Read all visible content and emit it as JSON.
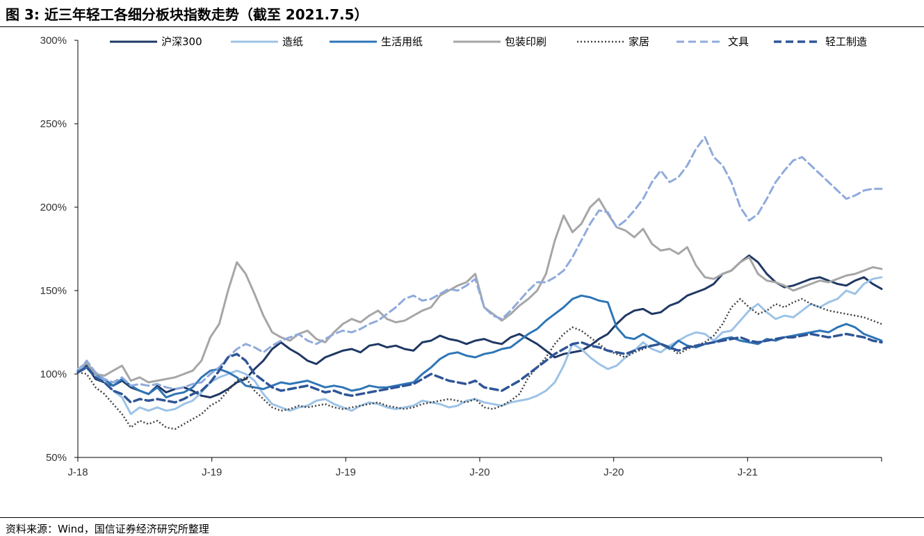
{
  "figure": {
    "title": "图 3:  近三年轻工各细分板块指数走势（截至 2021.7.5）",
    "source": "资料来源：Wind，国信证券经济研究所整理"
  },
  "chart_data": {
    "type": "line",
    "y_ticks": [
      "50%",
      "100%",
      "150%",
      "200%",
      "250%",
      "300%"
    ],
    "y_tick_values": [
      50,
      100,
      150,
      200,
      250,
      300
    ],
    "ylim": [
      50,
      300
    ],
    "x_ticks": [
      "J-18",
      "J-19",
      "J-19",
      "J-20",
      "J-20",
      "J-21"
    ],
    "x_tick_positions": [
      0,
      0.1667,
      0.3333,
      0.5,
      0.6667,
      0.8333
    ],
    "grid": false,
    "legend_position": "top",
    "series": [
      {
        "name": "沪深300",
        "color": "#1f3864",
        "dash": "solid",
        "width": 3,
        "values": [
          101,
          105,
          97,
          95,
          93,
          96,
          92,
          90,
          88,
          93,
          89,
          91,
          92,
          90,
          87,
          86,
          88,
          91,
          95,
          97,
          103,
          108,
          115,
          119,
          115,
          112,
          108,
          106,
          110,
          112,
          114,
          115,
          113,
          117,
          118,
          116,
          117,
          115,
          114,
          119,
          120,
          123,
          121,
          120,
          118,
          120,
          121,
          119,
          118,
          122,
          124,
          121,
          118,
          114,
          110,
          112,
          113,
          114,
          117,
          121,
          124,
          130,
          135,
          138,
          139,
          136,
          137,
          141,
          143,
          147,
          149,
          151,
          154,
          160,
          162,
          167,
          171,
          167,
          160,
          155,
          152,
          153,
          155,
          157,
          158,
          156,
          154,
          153,
          156,
          158,
          154,
          151
        ]
      },
      {
        "name": "造纸",
        "color": "#9dc3e6",
        "dash": "solid",
        "width": 3,
        "values": [
          103,
          107,
          99,
          96,
          90,
          86,
          76,
          80,
          78,
          80,
          78,
          79,
          82,
          84,
          89,
          95,
          98,
          100,
          102,
          100,
          96,
          88,
          82,
          80,
          78,
          80,
          81,
          84,
          85,
          82,
          80,
          78,
          81,
          83,
          82,
          80,
          79,
          80,
          81,
          84,
          83,
          82,
          80,
          81,
          84,
          85,
          83,
          82,
          81,
          83,
          84,
          85,
          87,
          90,
          95,
          105,
          118,
          115,
          110,
          106,
          103,
          105,
          110,
          114,
          119,
          115,
          113,
          117,
          120,
          123,
          125,
          124,
          120,
          125,
          126,
          132,
          138,
          142,
          137,
          133,
          135,
          134,
          138,
          142,
          140,
          143,
          145,
          150,
          148,
          154,
          157,
          158
        ]
      },
      {
        "name": "生活用纸",
        "color": "#2e75b6",
        "dash": "solid",
        "width": 3,
        "values": [
          102,
          104,
          100,
          97,
          93,
          97,
          93,
          90,
          88,
          92,
          86,
          88,
          89,
          92,
          98,
          102,
          103,
          101,
          98,
          93,
          92,
          91,
          93,
          95,
          94,
          95,
          96,
          94,
          92,
          93,
          92,
          90,
          91,
          93,
          92,
          92,
          93,
          94,
          95,
          100,
          104,
          109,
          112,
          113,
          111,
          110,
          112,
          113,
          115,
          116,
          120,
          124,
          127,
          132,
          136,
          140,
          145,
          147,
          146,
          144,
          143,
          128,
          122,
          121,
          124,
          121,
          118,
          115,
          120,
          117,
          116,
          118,
          119,
          121,
          122,
          120,
          119,
          118,
          121,
          120,
          122,
          123,
          124,
          125,
          126,
          125,
          128,
          130,
          128,
          124,
          122,
          120
        ]
      },
      {
        "name": "包装印刷",
        "color": "#a6a6a6",
        "dash": "solid",
        "width": 3,
        "values": [
          101,
          107,
          100,
          99,
          102,
          105,
          96,
          98,
          95,
          96,
          97,
          98,
          100,
          102,
          108,
          122,
          130,
          150,
          167,
          160,
          148,
          135,
          125,
          122,
          120,
          124,
          126,
          121,
          119,
          125,
          130,
          133,
          131,
          135,
          138,
          133,
          131,
          132,
          135,
          138,
          140,
          147,
          150,
          153,
          155,
          160,
          140,
          136,
          132,
          136,
          141,
          145,
          150,
          160,
          180,
          195,
          185,
          190,
          200,
          205,
          196,
          188,
          186,
          182,
          187,
          178,
          174,
          175,
          172,
          176,
          165,
          158,
          157,
          160,
          162,
          167,
          170,
          160,
          156,
          155,
          153,
          150,
          152,
          154,
          156,
          155,
          157,
          159,
          160,
          162,
          164,
          163
        ]
      },
      {
        "name": "家居",
        "color": "#404040",
        "dash": "dotted",
        "width": 2.5,
        "values": [
          101,
          100,
          92,
          88,
          82,
          76,
          68,
          72,
          70,
          72,
          68,
          67,
          70,
          73,
          76,
          81,
          84,
          90,
          96,
          98,
          90,
          85,
          80,
          78,
          79,
          81,
          80,
          81,
          82,
          80,
          79,
          80,
          81,
          82,
          83,
          81,
          80,
          79,
          80,
          82,
          83,
          84,
          85,
          84,
          83,
          85,
          80,
          79,
          81,
          84,
          88,
          98,
          104,
          110,
          118,
          124,
          128,
          126,
          122,
          118,
          114,
          112,
          110,
          113,
          115,
          117,
          118,
          116,
          112,
          115,
          117,
          119,
          123,
          130,
          140,
          145,
          140,
          136,
          138,
          142,
          140,
          143,
          145,
          142,
          140,
          138,
          137,
          136,
          135,
          134,
          132,
          130
        ]
      },
      {
        "name": "文具",
        "color": "#8faadc",
        "dash": "dashed",
        "width": 3,
        "values": [
          101,
          108,
          101,
          97,
          95,
          98,
          93,
          94,
          93,
          94,
          92,
          91,
          92,
          94,
          95,
          100,
          104,
          110,
          115,
          118,
          116,
          113,
          117,
          120,
          122,
          124,
          120,
          118,
          121,
          124,
          126,
          125,
          127,
          130,
          132,
          136,
          140,
          145,
          147,
          144,
          145,
          148,
          151,
          150,
          153,
          157,
          140,
          135,
          133,
          138,
          144,
          150,
          155,
          155,
          158,
          162,
          170,
          180,
          190,
          198,
          197,
          188,
          192,
          198,
          205,
          215,
          222,
          215,
          218,
          225,
          235,
          242,
          230,
          225,
          215,
          200,
          192,
          196,
          205,
          215,
          222,
          228,
          230,
          225,
          220,
          215,
          210,
          205,
          207,
          210,
          211,
          211
        ]
      },
      {
        "name": "轻工制造",
        "color": "#2f5597",
        "dash": "dashed",
        "width": 3.5,
        "values": [
          101,
          104,
          98,
          95,
          90,
          88,
          83,
          85,
          84,
          85,
          84,
          83,
          85,
          88,
          90,
          95,
          102,
          110,
          112,
          108,
          100,
          96,
          92,
          90,
          91,
          92,
          93,
          91,
          89,
          90,
          88,
          87,
          88,
          89,
          90,
          91,
          92,
          93,
          94,
          97,
          100,
          98,
          96,
          95,
          94,
          96,
          92,
          91,
          90,
          93,
          96,
          100,
          104,
          108,
          112,
          115,
          118,
          119,
          117,
          116,
          114,
          113,
          112,
          114,
          116,
          117,
          118,
          116,
          114,
          116,
          117,
          118,
          119,
          120,
          121,
          122,
          120,
          119,
          120,
          121,
          122,
          122,
          123,
          124,
          123,
          122,
          123,
          124,
          123,
          122,
          120,
          119
        ]
      }
    ]
  }
}
